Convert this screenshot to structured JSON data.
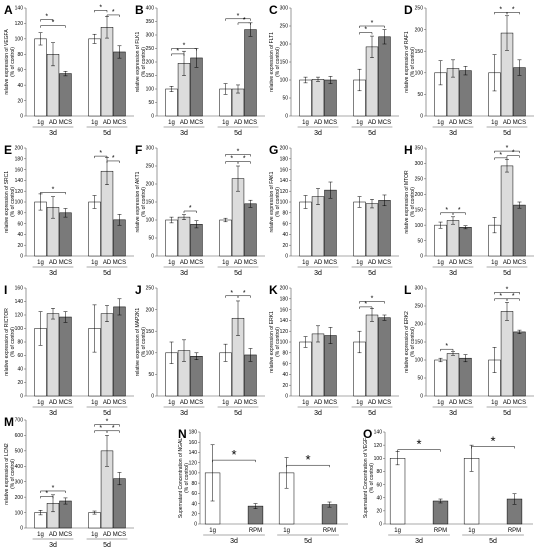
{
  "chart_data": [
    {
      "letter": "A",
      "type": "bar",
      "ylabel_lines": [
        "relative expression of VEGFA",
        "(% of control)"
      ],
      "ylim": [
        0,
        140
      ],
      "ticks": [
        0,
        20,
        40,
        60,
        80,
        100,
        120,
        140
      ],
      "groups": [
        {
          "label": "3d",
          "categories": [
            "1g",
            "AD",
            "MCS"
          ]
        },
        {
          "label": "5d",
          "categories": [
            "1g",
            "AD",
            "MCS"
          ]
        }
      ],
      "values": [
        [
          100,
          80,
          55
        ],
        [
          100,
          115,
          83
        ]
      ],
      "errors": [
        [
          8,
          15,
          3
        ],
        [
          6,
          14,
          8
        ]
      ],
      "sig": [
        {
          "g": 0,
          "from": 0,
          "to": 1,
          "y": 125
        },
        {
          "g": 0,
          "from": 0,
          "to": 2,
          "y": 117
        },
        {
          "g": 1,
          "from": 0,
          "to": 1,
          "y": 137
        },
        {
          "g": 1,
          "from": 1,
          "to": 2,
          "y": 131
        }
      ]
    },
    {
      "letter": "B",
      "type": "bar",
      "ylabel_lines": [
        "relative expression of FLK1",
        "(% of control)"
      ],
      "ylim": [
        0,
        400
      ],
      "ticks": [
        0,
        50,
        100,
        150,
        200,
        250,
        300,
        350,
        400
      ],
      "groups": [
        {
          "label": "3d",
          "categories": [
            "1g",
            "AD",
            "MCS"
          ]
        },
        {
          "label": "5d",
          "categories": [
            "1g",
            "AD",
            "MCS"
          ]
        }
      ],
      "values": [
        [
          100,
          195,
          215
        ],
        [
          100,
          100,
          320
        ]
      ],
      "errors": [
        [
          10,
          45,
          35
        ],
        [
          20,
          15,
          25
        ]
      ],
      "sig": [
        {
          "g": 0,
          "from": 0,
          "to": 1,
          "y": 230
        },
        {
          "g": 0,
          "from": 0,
          "to": 2,
          "y": 250
        },
        {
          "g": 1,
          "from": 0,
          "to": 2,
          "y": 360
        },
        {
          "g": 1,
          "from": 1,
          "to": 2,
          "y": 345
        }
      ]
    },
    {
      "letter": "C",
      "type": "bar",
      "ylabel_lines": [
        "relative expression of FLT1",
        "(% of control)"
      ],
      "ylim": [
        0,
        300
      ],
      "ticks": [
        0,
        50,
        100,
        150,
        200,
        250,
        300
      ],
      "groups": [
        {
          "label": "3d",
          "categories": [
            "1g",
            "AD",
            "MCS"
          ]
        },
        {
          "label": "5d",
          "categories": [
            "1g",
            "AD",
            "MCS"
          ]
        }
      ],
      "values": [
        [
          100,
          102,
          100
        ],
        [
          100,
          192,
          220
        ]
      ],
      "errors": [
        [
          8,
          6,
          10
        ],
        [
          30,
          30,
          20
        ]
      ],
      "sig": [
        {
          "g": 1,
          "from": 0,
          "to": 1,
          "y": 232
        },
        {
          "g": 1,
          "from": 0,
          "to": 2,
          "y": 250
        }
      ]
    },
    {
      "letter": "D",
      "type": "bar",
      "ylabel_lines": [
        "relative expression of RAF1",
        "(% of control)"
      ],
      "ylim": [
        0,
        250
      ],
      "ticks": [
        0,
        50,
        100,
        150,
        200,
        250
      ],
      "groups": [
        {
          "label": "3d",
          "categories": [
            "1g",
            "AD",
            "MCS"
          ]
        },
        {
          "label": "5d",
          "categories": [
            "1g",
            "AD",
            "MCS"
          ]
        }
      ],
      "values": [
        [
          100,
          110,
          105
        ],
        [
          100,
          192,
          112
        ]
      ],
      "errors": [
        [
          28,
          20,
          10
        ],
        [
          42,
          40,
          18
        ]
      ],
      "sig": [
        {
          "g": 1,
          "from": 0,
          "to": 1,
          "y": 240
        },
        {
          "g": 1,
          "from": 1,
          "to": 2,
          "y": 240
        }
      ]
    },
    {
      "letter": "E",
      "type": "bar",
      "ylabel_lines": [
        "relative expression of SRC1",
        "(% of control)"
      ],
      "ylim": [
        0,
        200
      ],
      "ticks": [
        0,
        20,
        40,
        60,
        80,
        100,
        120,
        140,
        160,
        180,
        200
      ],
      "groups": [
        {
          "label": "3d",
          "categories": [
            "1g",
            "AD",
            "MCS"
          ]
        },
        {
          "label": "5d",
          "categories": [
            "1g",
            "AD",
            "MCS"
          ]
        }
      ],
      "values": [
        [
          100,
          90,
          80
        ],
        [
          100,
          157,
          67
        ]
      ],
      "errors": [
        [
          15,
          20,
          8
        ],
        [
          12,
          25,
          10
        ]
      ],
      "sig": [
        {
          "g": 0,
          "from": 0,
          "to": 2,
          "y": 118
        },
        {
          "g": 1,
          "from": 0,
          "to": 1,
          "y": 185
        },
        {
          "g": 1,
          "from": 1,
          "to": 2,
          "y": 176
        }
      ]
    },
    {
      "letter": "F",
      "type": "bar",
      "ylabel_lines": [
        "relative expression of AKT1",
        "(% of control)"
      ],
      "ylim": [
        0,
        300
      ],
      "ticks": [
        0,
        50,
        100,
        150,
        200,
        250,
        300
      ],
      "groups": [
        {
          "label": "3d",
          "categories": [
            "1g",
            "AD",
            "MCS"
          ]
        },
        {
          "label": "5d",
          "categories": [
            "1g",
            "AD",
            "MCS"
          ]
        }
      ],
      "values": [
        [
          100,
          108,
          88
        ],
        [
          100,
          215,
          145
        ]
      ],
      "errors": [
        [
          8,
          7,
          10
        ],
        [
          5,
          35,
          10
        ]
      ],
      "sig": [
        {
          "g": 0,
          "from": 1,
          "to": 2,
          "y": 125
        },
        {
          "g": 1,
          "from": 0,
          "to": 2,
          "y": 282
        },
        {
          "g": 1,
          "from": 0,
          "to": 1,
          "y": 262
        },
        {
          "g": 1,
          "from": 1,
          "to": 2,
          "y": 262
        }
      ]
    },
    {
      "letter": "G",
      "type": "bar",
      "ylabel_lines": [
        "relative expression of FAK1",
        "(% of control)"
      ],
      "ylim": [
        0,
        200
      ],
      "ticks": [
        0,
        20,
        40,
        60,
        80,
        100,
        120,
        140,
        160,
        180,
        200
      ],
      "groups": [
        {
          "label": "3d",
          "categories": [
            "1g",
            "AD",
            "MCS"
          ]
        },
        {
          "label": "5d",
          "categories": [
            "1g",
            "AD",
            "MCS"
          ]
        }
      ],
      "values": [
        [
          100,
          110,
          122
        ],
        [
          100,
          97,
          103
        ]
      ],
      "errors": [
        [
          12,
          15,
          15
        ],
        [
          10,
          8,
          10
        ]
      ],
      "sig": []
    },
    {
      "letter": "H",
      "type": "bar",
      "ylabel_lines": [
        "relative expression of MTOR",
        "(% of control)"
      ],
      "ylim": [
        0,
        350
      ],
      "ticks": [
        0,
        50,
        100,
        150,
        200,
        250,
        300,
        350
      ],
      "groups": [
        {
          "label": "3d",
          "categories": [
            "1g",
            "AD",
            "MCS"
          ]
        },
        {
          "label": "5d",
          "categories": [
            "1g",
            "AD",
            "MCS"
          ]
        }
      ],
      "values": [
        [
          100,
          115,
          93
        ],
        [
          100,
          292,
          165
        ]
      ],
      "errors": [
        [
          10,
          12,
          5
        ],
        [
          25,
          20,
          10
        ]
      ],
      "sig": [
        {
          "g": 0,
          "from": 0,
          "to": 1,
          "y": 140
        },
        {
          "g": 0,
          "from": 1,
          "to": 2,
          "y": 140
        },
        {
          "g": 1,
          "from": 0,
          "to": 2,
          "y": 340
        },
        {
          "g": 1,
          "from": 1,
          "to": 2,
          "y": 325
        },
        {
          "g": 1,
          "from": 0,
          "to": 1,
          "y": 318
        }
      ]
    },
    {
      "letter": "I",
      "type": "bar",
      "ylabel_lines": [
        "relative expression of RICTOR",
        "(% of control)"
      ],
      "ylim": [
        0,
        160
      ],
      "ticks": [
        0,
        20,
        40,
        60,
        80,
        100,
        120,
        140,
        160
      ],
      "groups": [
        {
          "label": "3d",
          "categories": [
            "1g",
            "AD",
            "MCS"
          ]
        },
        {
          "label": "5d",
          "categories": [
            "1g",
            "AD",
            "MCS"
          ]
        }
      ],
      "values": [
        [
          100,
          122,
          117
        ],
        [
          100,
          122,
          132
        ]
      ],
      "errors": [
        [
          25,
          8,
          8
        ],
        [
          35,
          12,
          12
        ]
      ],
      "sig": []
    },
    {
      "letter": "J",
      "type": "bar",
      "ylabel_lines": [
        "relative expression of MAP2K1",
        "(% of control)"
      ],
      "ylim": [
        0,
        250
      ],
      "ticks": [
        0,
        50,
        100,
        150,
        200,
        250
      ],
      "groups": [
        {
          "label": "3d",
          "categories": [
            "1g",
            "AD",
            "MCS"
          ]
        },
        {
          "label": "5d",
          "categories": [
            "1g",
            "AD",
            "MCS"
          ]
        }
      ],
      "values": [
        [
          100,
          105,
          92
        ],
        [
          100,
          180,
          95
        ]
      ],
      "errors": [
        [
          25,
          25,
          8
        ],
        [
          20,
          40,
          15
        ]
      ],
      "sig": [
        {
          "g": 1,
          "from": 0,
          "to": 1,
          "y": 232
        },
        {
          "g": 1,
          "from": 1,
          "to": 2,
          "y": 232
        }
      ]
    },
    {
      "letter": "K",
      "type": "bar",
      "ylabel_lines": [
        "relative expression of ERK1",
        "(% of control)"
      ],
      "ylim": [
        0,
        200
      ],
      "ticks": [
        0,
        20,
        40,
        60,
        80,
        100,
        120,
        140,
        160,
        180,
        200
      ],
      "groups": [
        {
          "label": "3d",
          "categories": [
            "1g",
            "AD",
            "MCS"
          ]
        },
        {
          "label": "5d",
          "categories": [
            "1g",
            "AD",
            "MCS"
          ]
        }
      ],
      "values": [
        [
          100,
          115,
          112
        ],
        [
          100,
          150,
          145
        ]
      ],
      "errors": [
        [
          10,
          15,
          15
        ],
        [
          20,
          12,
          5
        ]
      ],
      "sig": [
        {
          "g": 1,
          "from": 0,
          "to": 1,
          "y": 165
        },
        {
          "g": 1,
          "from": 0,
          "to": 2,
          "y": 175
        }
      ]
    },
    {
      "letter": "L",
      "type": "bar",
      "ylabel_lines": [
        "relative expression of ERK2",
        "(% of control)"
      ],
      "ylim": [
        0,
        300
      ],
      "ticks": [
        0,
        50,
        100,
        150,
        200,
        250,
        300
      ],
      "groups": [
        {
          "label": "3d",
          "categories": [
            "1g",
            "AD",
            "MCS"
          ]
        },
        {
          "label": "5d",
          "categories": [
            "1g",
            "AD",
            "MCS"
          ]
        }
      ],
      "values": [
        [
          100,
          118,
          105
        ],
        [
          100,
          235,
          178
        ]
      ],
      "errors": [
        [
          5,
          5,
          10
        ],
        [
          35,
          25,
          5
        ]
      ],
      "sig": [
        {
          "g": 0,
          "from": 0,
          "to": 1,
          "y": 130
        },
        {
          "g": 1,
          "from": 0,
          "to": 2,
          "y": 288
        },
        {
          "g": 1,
          "from": 0,
          "to": 1,
          "y": 270
        },
        {
          "g": 1,
          "from": 1,
          "to": 2,
          "y": 270
        }
      ]
    },
    {
      "letter": "M",
      "type": "bar",
      "ylabel_lines": [
        "relative expression of LCN2",
        "(% of control)"
      ],
      "ylim": [
        0,
        700
      ],
      "ticks": [
        0,
        100,
        200,
        300,
        400,
        500,
        600,
        700
      ],
      "groups": [
        {
          "label": "3d",
          "categories": [
            "1g",
            "AD",
            "MCS"
          ]
        },
        {
          "label": "5d",
          "categories": [
            "1g",
            "AD",
            "MCS"
          ]
        }
      ],
      "values": [
        [
          100,
          160,
          175
        ],
        [
          100,
          500,
          320
        ]
      ],
      "errors": [
        [
          15,
          55,
          20
        ],
        [
          10,
          100,
          40
        ]
      ],
      "sig": [
        {
          "g": 0,
          "from": 0,
          "to": 1,
          "y": 205
        },
        {
          "g": 0,
          "from": 0,
          "to": 2,
          "y": 240
        },
        {
          "g": 1,
          "from": 0,
          "to": 2,
          "y": 670
        },
        {
          "g": 1,
          "from": 0,
          "to": 1,
          "y": 630
        },
        {
          "g": 1,
          "from": 1,
          "to": 2,
          "y": 630
        }
      ]
    },
    {
      "letter": "N",
      "type": "bar",
      "ylabel_lines": [
        "Supernatant Concentration of NGAL",
        "(% of control)"
      ],
      "ylim": [
        0,
        180
      ],
      "ticks": [
        0,
        20,
        40,
        60,
        80,
        100,
        120,
        140,
        160,
        180
      ],
      "groups": [
        {
          "label": "3d",
          "categories": [
            "1g",
            "RPM"
          ]
        },
        {
          "label": "5d",
          "categories": [
            "1g",
            "RPM"
          ]
        }
      ],
      "values": [
        [
          100,
          35
        ],
        [
          100,
          38
        ]
      ],
      "errors": [
        [
          55,
          5
        ],
        [
          30,
          5
        ]
      ],
      "sig": [
        {
          "g": 0,
          "from": 0,
          "to": 1,
          "y": 125
        },
        {
          "g": 1,
          "from": 0,
          "to": 1,
          "y": 115
        }
      ]
    },
    {
      "letter": "O",
      "type": "bar",
      "ylabel_lines": [
        "Supernatant Concentration of VEGF",
        "(% of control)"
      ],
      "ylim": [
        0,
        140
      ],
      "ticks": [
        0,
        20,
        40,
        60,
        80,
        100,
        120,
        140
      ],
      "groups": [
        {
          "label": "3d",
          "categories": [
            "1g",
            "RPM"
          ]
        },
        {
          "label": "5d",
          "categories": [
            "1g",
            "RPM"
          ]
        }
      ],
      "values": [
        [
          100,
          35
        ],
        [
          100,
          38
        ]
      ],
      "errors": [
        [
          10,
          3
        ],
        [
          20,
          8
        ]
      ],
      "sig": [
        {
          "g": 0,
          "from": 0,
          "to": 1,
          "y": 113
        },
        {
          "g": 1,
          "from": 0,
          "to": 1,
          "y": 118
        }
      ]
    }
  ],
  "sig_marker": "*",
  "colors": {
    "1g": "#ffffff",
    "AD": "#dcdcdc",
    "MCS": "#7a7a7a",
    "RPM": "#7a7a7a",
    "stroke": "#000000",
    "axis": "#555555"
  }
}
